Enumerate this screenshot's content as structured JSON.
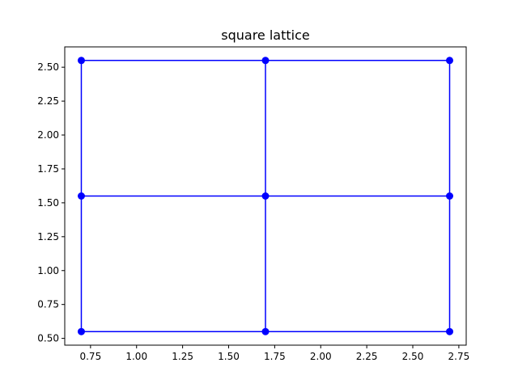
{
  "chart_data": {
    "type": "line",
    "title": "square lattice",
    "xlabel": "",
    "ylabel": "",
    "xlim": [
      0.61,
      2.79
    ],
    "ylim": [
      0.45,
      2.65
    ],
    "xticks": [
      0.75,
      1.0,
      1.25,
      1.5,
      1.75,
      2.0,
      2.25,
      2.5,
      2.75
    ],
    "xtick_labels": [
      "0.75",
      "1.00",
      "1.25",
      "1.50",
      "1.75",
      "2.00",
      "2.25",
      "2.50",
      "2.75"
    ],
    "yticks": [
      0.5,
      0.75,
      1.0,
      1.25,
      1.5,
      1.75,
      2.0,
      2.25,
      2.5
    ],
    "ytick_labels": [
      "0.50",
      "0.75",
      "1.00",
      "1.25",
      "1.50",
      "1.75",
      "2.00",
      "2.25",
      "2.50"
    ],
    "grid": false,
    "color": "#0000ff",
    "points": [
      {
        "x": 0.7,
        "y": 0.55
      },
      {
        "x": 1.7,
        "y": 0.55
      },
      {
        "x": 2.7,
        "y": 0.55
      },
      {
        "x": 0.7,
        "y": 1.55
      },
      {
        "x": 1.7,
        "y": 1.55
      },
      {
        "x": 2.7,
        "y": 1.55
      },
      {
        "x": 0.7,
        "y": 2.55
      },
      {
        "x": 1.7,
        "y": 2.55
      },
      {
        "x": 2.7,
        "y": 2.55
      }
    ],
    "segments": [
      [
        [
          0.7,
          0.55
        ],
        [
          2.7,
          0.55
        ]
      ],
      [
        [
          0.7,
          1.55
        ],
        [
          2.7,
          1.55
        ]
      ],
      [
        [
          0.7,
          2.55
        ],
        [
          2.7,
          2.55
        ]
      ],
      [
        [
          0.7,
          0.55
        ],
        [
          0.7,
          2.55
        ]
      ],
      [
        [
          1.7,
          0.55
        ],
        [
          1.7,
          2.55
        ]
      ],
      [
        [
          2.7,
          0.55
        ],
        [
          2.7,
          2.55
        ]
      ]
    ]
  }
}
